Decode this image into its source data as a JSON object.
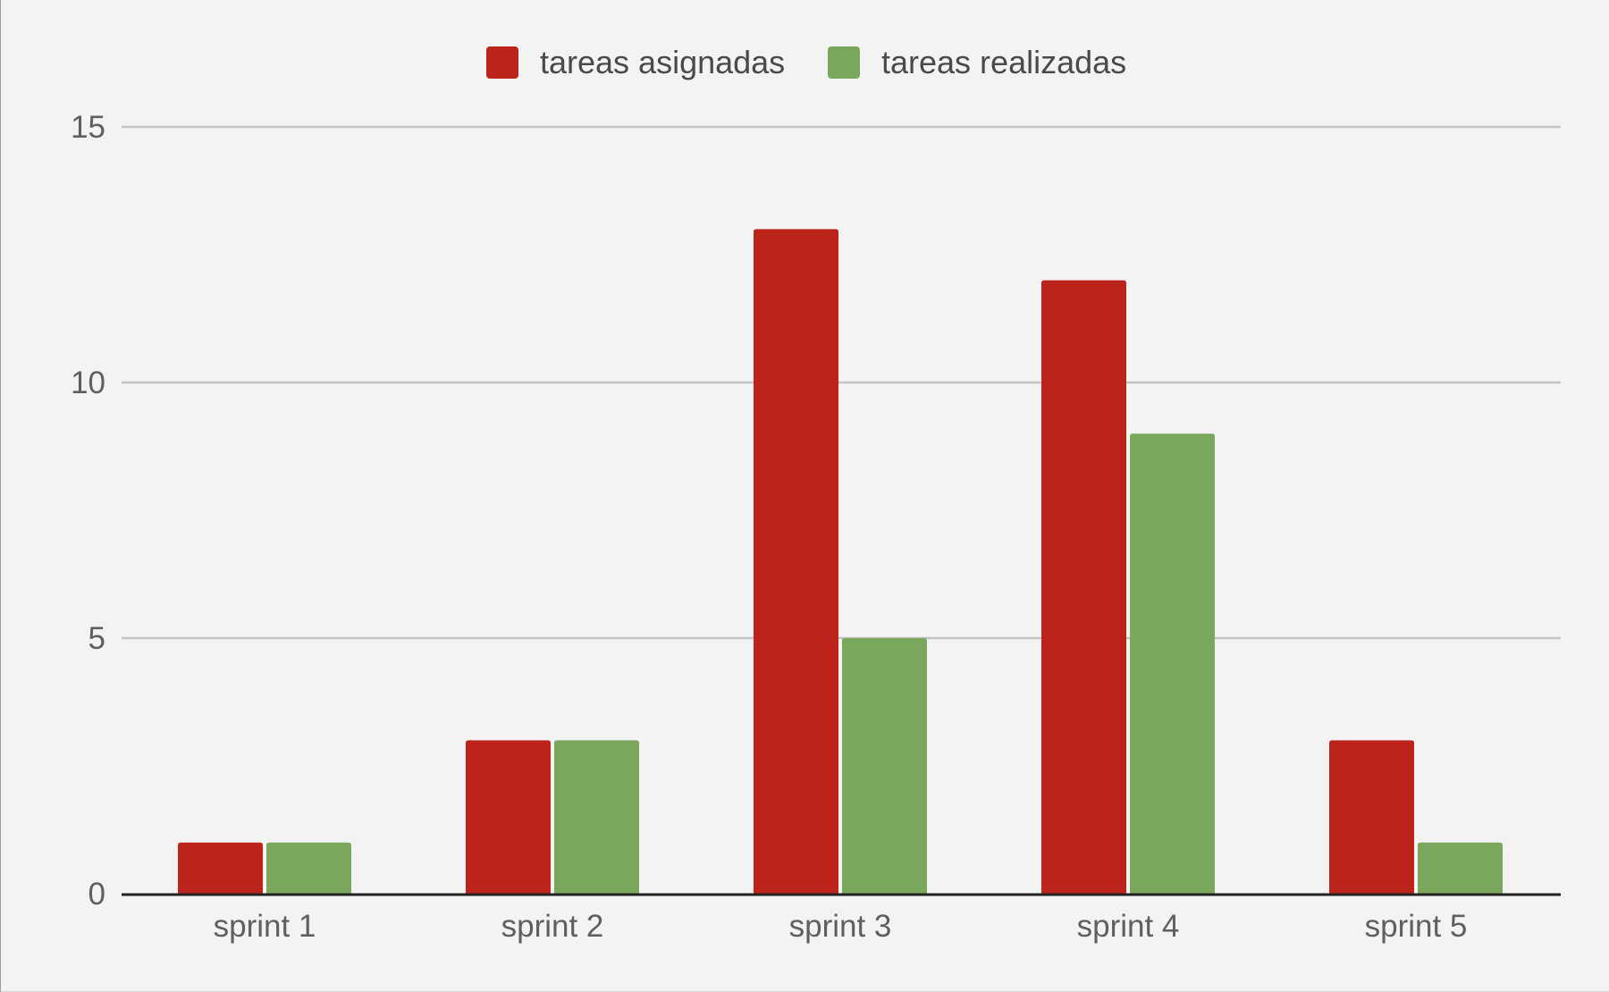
{
  "chart_data": {
    "type": "bar",
    "categories": [
      "sprint 1",
      "sprint 2",
      "sprint 3",
      "sprint 4",
      "sprint 5"
    ],
    "series": [
      {
        "name": "tareas asignadas",
        "color": "#bc241b",
        "values": [
          1,
          3,
          13,
          12,
          3
        ]
      },
      {
        "name": "tareas realizadas",
        "color": "#79a75b",
        "values": [
          1,
          3,
          5,
          9,
          1
        ]
      }
    ],
    "yticks": [
      "0",
      "5",
      "10",
      "15"
    ],
    "ylim": [
      0,
      15
    ],
    "grid": true,
    "legend_position": "top"
  }
}
